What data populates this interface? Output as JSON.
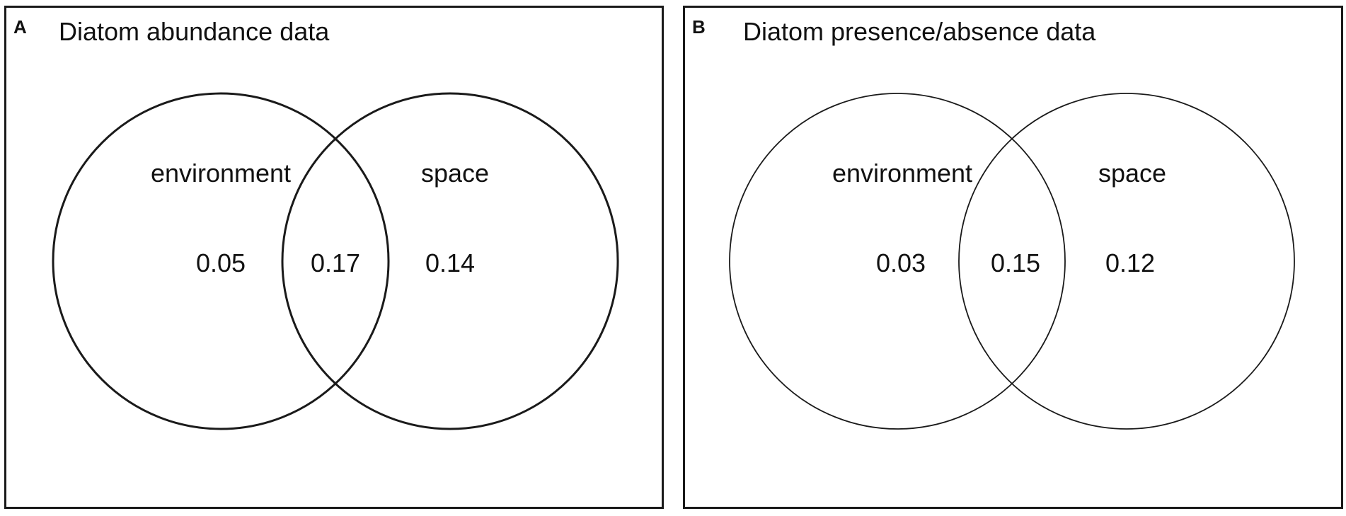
{
  "panels": [
    {
      "letter": "A",
      "title": "Diatom abundance data",
      "sets": [
        "environment",
        "space"
      ],
      "values": {
        "environment_only": "0.05",
        "shared": "0.17",
        "space_only": "0.14"
      }
    },
    {
      "letter": "B",
      "title": "Diatom presence/absence data",
      "sets": [
        "environment",
        "space"
      ],
      "values": {
        "environment_only": "0.03",
        "shared": "0.15",
        "space_only": "0.12"
      }
    }
  ]
}
